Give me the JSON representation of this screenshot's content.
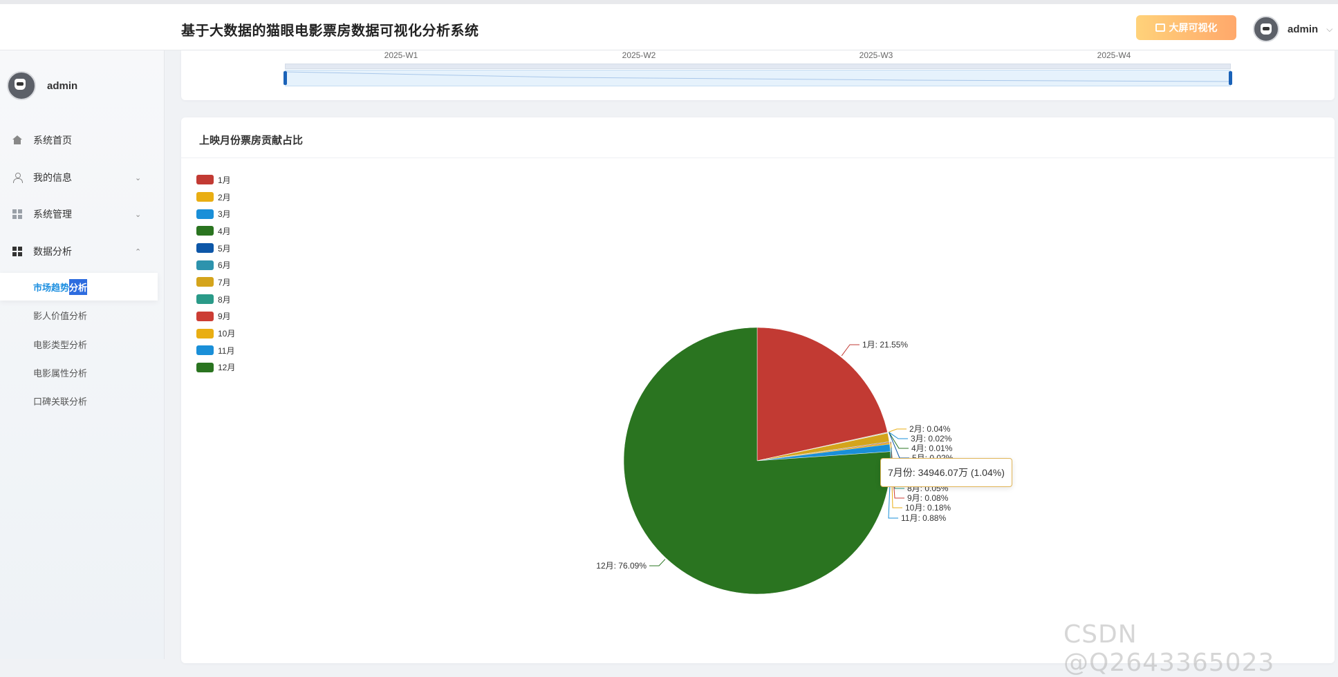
{
  "header": {
    "title": "基于大数据的猫眼电影票房数据可视化分析系统",
    "bigscreen_label": "大屏可视化",
    "username": "admin",
    "caret": "⌵"
  },
  "sidebar": {
    "username": "admin",
    "menu": [
      {
        "label": "系统首页",
        "icon": "home-icon"
      },
      {
        "label": "我的信息",
        "icon": "user-icon",
        "chevron": "⌄"
      },
      {
        "label": "系统管理",
        "icon": "grid-icon",
        "chevron": "⌄"
      },
      {
        "label": "数据分析",
        "icon": "grid-icon",
        "chevron": "⌃"
      }
    ],
    "submenu": [
      {
        "label_a": "市场趋势",
        "label_b": "分析"
      },
      {
        "label": "影人价值分析"
      },
      {
        "label": "电影类型分析"
      },
      {
        "label": "电影属性分析"
      },
      {
        "label": "口碑关联分析"
      }
    ]
  },
  "top_chart": {
    "weeks": [
      "2025-W1",
      "2025-W2",
      "2025-W3",
      "2025-W4"
    ]
  },
  "pie_card": {
    "title": "上映月份票房贡献占比"
  },
  "chart_data": {
    "type": "pie",
    "title": "上映月份票房贡献占比",
    "legend_position": "top-left",
    "categories": [
      "1月",
      "2月",
      "3月",
      "4月",
      "5月",
      "6月",
      "7月",
      "8月",
      "9月",
      "10月",
      "11月",
      "12月"
    ],
    "values": [
      21.55,
      0.04,
      0.02,
      0.01,
      0.02,
      0.03,
      1.04,
      0.05,
      0.08,
      0.18,
      0.88,
      76.09
    ],
    "colors": [
      "#c23a33",
      "#e9ae13",
      "#1a8fd8",
      "#2a7420",
      "#0d57a8",
      "#2d93ad",
      "#d4a41c",
      "#2a9a88",
      "#cc3d34",
      "#e9ae13",
      "#1a8fd8",
      "#2a7420"
    ],
    "labels": [
      "1月: 21.55%",
      "2月: 0.04%",
      "3月: 0.02%",
      "4月: 0.01%",
      "5月: 0.02%",
      "",
      "",
      "8月: 0.05%",
      "9月: 0.08%",
      "10月: 0.18%",
      "11月: 0.88%",
      "12月: 76.09%"
    ]
  },
  "tooltip": {
    "text": "7月份: 34946.07万 (1.04%)"
  },
  "watermark": "CSDN @Q2643365023"
}
